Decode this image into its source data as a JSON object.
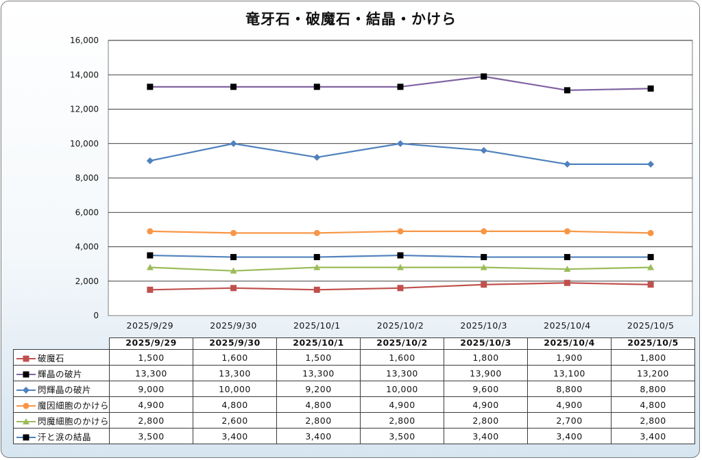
{
  "chart_data": {
    "type": "line",
    "title": "竜牙石・破魔石・結晶・かけら",
    "categories": [
      "2025/9/29",
      "2025/9/30",
      "2025/10/1",
      "2025/10/2",
      "2025/10/3",
      "2025/10/4",
      "2025/10/5"
    ],
    "ylim": [
      0,
      16000
    ],
    "yticks": [
      "0",
      "2,000",
      "4,000",
      "6,000",
      "8,000",
      "10,000",
      "12,000",
      "14,000",
      "16,000"
    ],
    "grid": true,
    "legend": "data-table",
    "series": [
      {
        "name": "破魔石",
        "values": [
          1500,
          1600,
          1500,
          1600,
          1800,
          1900,
          1800
        ],
        "labels": [
          "1,500",
          "1,600",
          "1,500",
          "1,600",
          "1,800",
          "1,900",
          "1,800"
        ],
        "color": "#c0504d",
        "marker": "square",
        "marker_color": "#c0504d"
      },
      {
        "name": "輝晶の破片",
        "values": [
          13300,
          13300,
          13300,
          13300,
          13900,
          13100,
          13200
        ],
        "labels": [
          "13,300",
          "13,300",
          "13,300",
          "13,300",
          "13,900",
          "13,100",
          "13,200"
        ],
        "color": "#8064a2",
        "marker": "square",
        "marker_color": "#000000"
      },
      {
        "name": "閃輝晶の破片",
        "values": [
          9000,
          10000,
          9200,
          10000,
          9600,
          8800,
          8800
        ],
        "labels": [
          "9,000",
          "10,000",
          "9,200",
          "10,000",
          "9,600",
          "8,800",
          "8,800"
        ],
        "color": "#4f81bd",
        "marker": "diamond",
        "marker_color": "#4f81bd"
      },
      {
        "name": "魔因細胞のかけら",
        "values": [
          4900,
          4800,
          4800,
          4900,
          4900,
          4900,
          4800
        ],
        "labels": [
          "4,900",
          "4,800",
          "4,800",
          "4,900",
          "4,900",
          "4,900",
          "4,800"
        ],
        "color": "#f79646",
        "marker": "circle",
        "marker_color": "#f79646"
      },
      {
        "name": "閃魔細胞のかけら",
        "values": [
          2800,
          2600,
          2800,
          2800,
          2800,
          2700,
          2800
        ],
        "labels": [
          "2,800",
          "2,600",
          "2,800",
          "2,800",
          "2,800",
          "2,700",
          "2,800"
        ],
        "color": "#9bbb59",
        "marker": "triangle",
        "marker_color": "#9bbb59"
      },
      {
        "name": "汗と涙の結晶",
        "values": [
          3500,
          3400,
          3400,
          3500,
          3400,
          3400,
          3400
        ],
        "labels": [
          "3,500",
          "3,400",
          "3,400",
          "3,500",
          "3,400",
          "3,400",
          "3,400"
        ],
        "color": "#4f81bd",
        "marker": "square",
        "marker_color": "#000000"
      }
    ]
  }
}
